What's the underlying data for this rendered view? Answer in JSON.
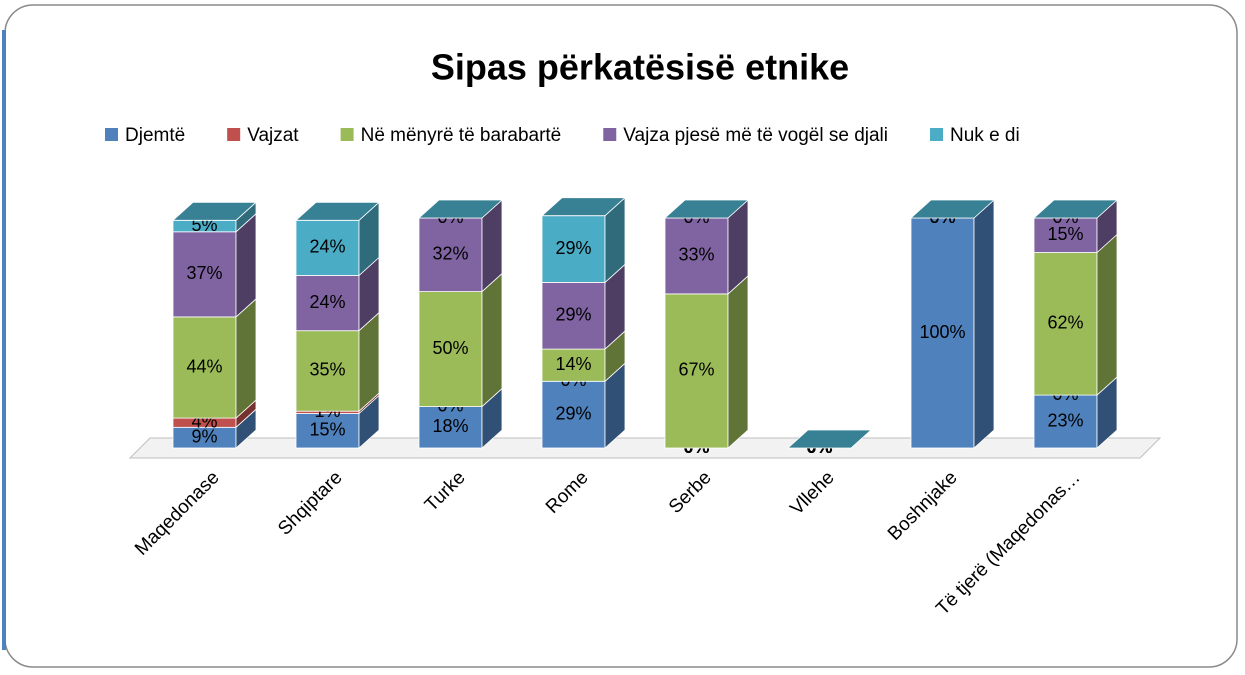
{
  "chart_data": {
    "type": "bar3d_stacked",
    "title": "Sipas përkatësisë etnike",
    "categories": [
      "Maqedonase",
      "Shqiptare",
      "Turke",
      "Rome",
      "Serbe",
      "Vllehe",
      "Boshnjake",
      "Të tjerë (Maqedonas…"
    ],
    "ylim": [
      0,
      100
    ],
    "legend": "top",
    "series": [
      {
        "name": "Djemtë",
        "color": "#4f81bd",
        "values": [
          9,
          15,
          18,
          29,
          0,
          0,
          100,
          23
        ],
        "value_labels": [
          "9%",
          "15%",
          "18%",
          "29%",
          "0%",
          "0%",
          "100%",
          "23%"
        ]
      },
      {
        "name": "Vajzat",
        "color": "#c0504d",
        "values": [
          4,
          1,
          0,
          0,
          0,
          0,
          0,
          0
        ],
        "value_labels": [
          "4%",
          "1%",
          "0%",
          "0%",
          "0%",
          "0%",
          "0%",
          "0%"
        ]
      },
      {
        "name": "Në mënyrë të barabartë",
        "color": "#9bbb59",
        "values": [
          44,
          35,
          50,
          14,
          67,
          0,
          0,
          62
        ],
        "value_labels": [
          "44%",
          "35%",
          "50%",
          "14%",
          "67%",
          "0%",
          "0%",
          "62%"
        ]
      },
      {
        "name": "Vajza pjesë më të vogël se djali",
        "color": "#8064a2",
        "values": [
          37,
          24,
          32,
          29,
          33,
          0,
          0,
          15
        ],
        "value_labels": [
          "37%",
          "24%",
          "32%",
          "29%",
          "33%",
          "0%",
          "0%",
          "15%"
        ]
      },
      {
        "name": "Nuk e di",
        "color": "#4bacc6",
        "values": [
          5,
          24,
          0,
          29,
          0,
          0,
          0,
          0
        ],
        "value_labels": [
          "5%",
          "24%",
          "0%",
          "29%",
          "0%",
          "0%",
          "0%",
          "0%"
        ]
      }
    ]
  }
}
